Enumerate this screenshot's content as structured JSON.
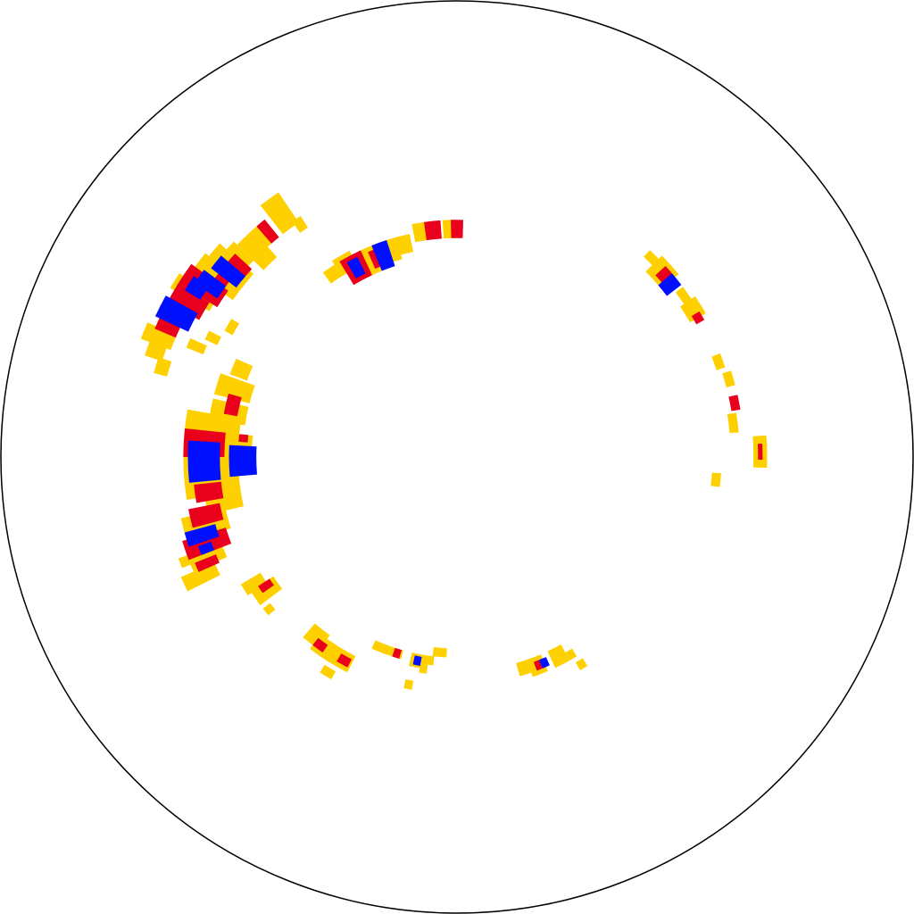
{
  "chart_data": {
    "type": "heatmap",
    "projection": "polar",
    "title": "",
    "colors": {
      "background": "#ffffff",
      "outline": "#000000",
      "low": "#ffd000",
      "mid": "#e8001c",
      "high": "#0010ff"
    },
    "levels": [
      "low",
      "mid",
      "high"
    ],
    "notes_visible_text": "none",
    "cells": [
      {
        "angle": 124,
        "r_in": 0.47,
        "r_out": 0.5,
        "dtheta": 4,
        "level": "low"
      },
      {
        "angle": 120,
        "r_in": 0.47,
        "r_out": 0.51,
        "dtheta": 5,
        "level": "low"
      },
      {
        "angle": 118,
        "r_in": 0.44,
        "r_out": 0.5,
        "dtheta": 6,
        "level": "mid"
      },
      {
        "angle": 118,
        "r_in": 0.45,
        "r_out": 0.49,
        "dtheta": 3,
        "level": "high"
      },
      {
        "angle": 114,
        "r_in": 0.44,
        "r_out": 0.5,
        "dtheta": 5,
        "level": "low"
      },
      {
        "angle": 112,
        "r_in": 0.45,
        "r_out": 0.49,
        "dtheta": 3,
        "level": "mid"
      },
      {
        "angle": 110,
        "r_in": 0.44,
        "r_out": 0.5,
        "dtheta": 4,
        "level": "high"
      },
      {
        "angle": 108,
        "r_in": 0.45,
        "r_out": 0.5,
        "dtheta": 5,
        "level": "low"
      },
      {
        "angle": 104,
        "r_in": 0.46,
        "r_out": 0.5,
        "dtheta": 4,
        "level": "low"
      },
      {
        "angle": 99,
        "r_in": 0.48,
        "r_out": 0.52,
        "dtheta": 4,
        "level": "low"
      },
      {
        "angle": 96,
        "r_in": 0.48,
        "r_out": 0.52,
        "dtheta": 4,
        "level": "mid"
      },
      {
        "angle": 92,
        "r_in": 0.48,
        "r_out": 0.52,
        "dtheta": 3,
        "level": "low"
      },
      {
        "angle": 90,
        "r_in": 0.48,
        "r_out": 0.52,
        "dtheta": 3,
        "level": "mid"
      },
      {
        "angle": 45,
        "r_in": 0.6,
        "r_out": 0.62,
        "dtheta": 4,
        "level": "low"
      },
      {
        "angle": 42,
        "r_in": 0.58,
        "r_out": 0.63,
        "dtheta": 5,
        "level": "low"
      },
      {
        "angle": 41,
        "r_in": 0.59,
        "r_out": 0.62,
        "dtheta": 3,
        "level": "mid"
      },
      {
        "angle": 39,
        "r_in": 0.58,
        "r_out": 0.62,
        "dtheta": 3,
        "level": "high"
      },
      {
        "angle": 35,
        "r_in": 0.6,
        "r_out": 0.62,
        "dtheta": 4,
        "level": "low"
      },
      {
        "angle": 32,
        "r_in": 0.59,
        "r_out": 0.63,
        "dtheta": 4,
        "level": "low"
      },
      {
        "angle": 30,
        "r_in": 0.6,
        "r_out": 0.62,
        "dtheta": 2,
        "level": "mid"
      },
      {
        "angle": 20,
        "r_in": 0.6,
        "r_out": 0.62,
        "dtheta": 3,
        "level": "low"
      },
      {
        "angle": 16,
        "r_in": 0.61,
        "r_out": 0.63,
        "dtheta": 3,
        "level": "low"
      },
      {
        "angle": 11,
        "r_in": 0.61,
        "r_out": 0.63,
        "dtheta": 3,
        "level": "mid"
      },
      {
        "angle": 7,
        "r_in": 0.6,
        "r_out": 0.62,
        "dtheta": 4,
        "level": "low"
      },
      {
        "angle": 1,
        "r_in": 0.65,
        "r_out": 0.68,
        "dtheta": 6,
        "level": "low"
      },
      {
        "angle": 1,
        "r_in": 0.66,
        "r_out": 0.67,
        "dtheta": 3,
        "level": "mid"
      },
      {
        "angle": -5,
        "r_in": 0.56,
        "r_out": 0.58,
        "dtheta": 3,
        "level": "low"
      },
      {
        "angle": 163,
        "r_in": 0.66,
        "r_out": 0.69,
        "dtheta": 3,
        "level": "low"
      },
      {
        "angle": 160,
        "r_in": 0.68,
        "r_out": 0.72,
        "dtheta": 4,
        "level": "low"
      },
      {
        "angle": 158,
        "r_in": 0.67,
        "r_out": 0.74,
        "dtheta": 3,
        "level": "low"
      },
      {
        "angle": 155,
        "r_in": 0.67,
        "r_out": 0.72,
        "dtheta": 4,
        "level": "mid"
      },
      {
        "angle": 153,
        "r_in": 0.65,
        "r_out": 0.73,
        "dtheta": 4,
        "level": "high"
      },
      {
        "angle": 150,
        "r_in": 0.64,
        "r_out": 0.72,
        "dtheta": 4,
        "level": "mid"
      },
      {
        "angle": 148,
        "r_in": 0.63,
        "r_out": 0.73,
        "dtheta": 3,
        "level": "low"
      },
      {
        "angle": 147,
        "r_in": 0.66,
        "r_out": 0.7,
        "dtheta": 3,
        "level": "high"
      },
      {
        "angle": 146,
        "r_in": 0.62,
        "r_out": 0.72,
        "dtheta": 4,
        "level": "mid"
      },
      {
        "angle": 145,
        "r_in": 0.63,
        "r_out": 0.69,
        "dtheta": 3,
        "level": "high"
      },
      {
        "angle": 143,
        "r_in": 0.6,
        "r_out": 0.71,
        "dtheta": 4,
        "level": "low"
      },
      {
        "angle": 143,
        "r_in": 0.63,
        "r_out": 0.66,
        "dtheta": 2,
        "level": "mid"
      },
      {
        "angle": 141,
        "r_in": 0.61,
        "r_out": 0.68,
        "dtheta": 3,
        "level": "high"
      },
      {
        "angle": 140,
        "r_in": 0.6,
        "r_out": 0.7,
        "dtheta": 4,
        "level": "low"
      },
      {
        "angle": 139,
        "r_in": 0.61,
        "r_out": 0.66,
        "dtheta": 3,
        "level": "mid"
      },
      {
        "angle": 137,
        "r_in": 0.62,
        "r_out": 0.68,
        "dtheta": 2,
        "level": "low"
      },
      {
        "angle": 134,
        "r_in": 0.59,
        "r_out": 0.67,
        "dtheta": 4,
        "level": "low"
      },
      {
        "angle": 131,
        "r_in": 0.62,
        "r_out": 0.67,
        "dtheta": 4,
        "level": "low"
      },
      {
        "angle": 130,
        "r_in": 0.62,
        "r_out": 0.67,
        "dtheta": 2,
        "level": "mid"
      },
      {
        "angle": 126,
        "r_in": 0.62,
        "r_out": 0.7,
        "dtheta": 4,
        "level": "low"
      },
      {
        "angle": 124,
        "r_in": 0.6,
        "r_out": 0.63,
        "dtheta": 2,
        "level": "low"
      },
      {
        "angle": 157,
        "r_in": 0.6,
        "r_out": 0.64,
        "dtheta": 2,
        "level": "low"
      },
      {
        "angle": 150,
        "r_in": 0.56,
        "r_out": 0.58,
        "dtheta": 3,
        "level": "low"
      },
      {
        "angle": 154,
        "r_in": 0.58,
        "r_out": 0.61,
        "dtheta": 2,
        "level": "low"
      },
      {
        "angle": 179,
        "r_in": 0.45,
        "r_out": 0.48,
        "dtheta": 3,
        "level": "low"
      },
      {
        "angle": 176,
        "r_in": 0.45,
        "r_out": 0.49,
        "dtheta": 4,
        "level": "low"
      },
      {
        "angle": 175,
        "r_in": 0.46,
        "r_out": 0.48,
        "dtheta": 2,
        "level": "mid"
      },
      {
        "angle": 183,
        "r_in": 0.55,
        "r_out": 0.57,
        "dtheta": 3,
        "level": "low"
      },
      {
        "angle": 178,
        "r_in": 0.48,
        "r_out": 0.53,
        "dtheta": 6,
        "level": "low"
      },
      {
        "angle": 173,
        "r_in": 0.48,
        "r_out": 0.53,
        "dtheta": 5,
        "level": "low"
      },
      {
        "angle": 169,
        "r_in": 0.47,
        "r_out": 0.55,
        "dtheta": 5,
        "level": "low"
      },
      {
        "angle": 167,
        "r_in": 0.49,
        "r_out": 0.52,
        "dtheta": 5,
        "level": "mid"
      },
      {
        "angle": 163,
        "r_in": 0.47,
        "r_out": 0.55,
        "dtheta": 5,
        "level": "low"
      },
      {
        "angle": 158,
        "r_in": 0.49,
        "r_out": 0.53,
        "dtheta": 4,
        "level": "low"
      },
      {
        "angle": 181,
        "r_in": 0.44,
        "r_out": 0.5,
        "dtheta": 8,
        "level": "high"
      },
      {
        "angle": 178,
        "r_in": 0.49,
        "r_out": 0.6,
        "dtheta": 16,
        "level": "low"
      },
      {
        "angle": 177,
        "r_in": 0.51,
        "r_out": 0.6,
        "dtheta": 6,
        "level": "mid"
      },
      {
        "angle": 181,
        "r_in": 0.52,
        "r_out": 0.59,
        "dtheta": 9,
        "level": "high"
      },
      {
        "angle": 186,
        "r_in": 0.48,
        "r_out": 0.6,
        "dtheta": 6,
        "level": "low"
      },
      {
        "angle": 188,
        "r_in": 0.52,
        "r_out": 0.58,
        "dtheta": 4,
        "level": "mid"
      },
      {
        "angle": 191,
        "r_in": 0.48,
        "r_out": 0.56,
        "dtheta": 4,
        "level": "low"
      },
      {
        "angle": 193,
        "r_in": 0.53,
        "r_out": 0.6,
        "dtheta": 4,
        "level": "mid"
      },
      {
        "angle": 195,
        "r_in": 0.52,
        "r_out": 0.62,
        "dtheta": 5,
        "level": "low"
      },
      {
        "angle": 197,
        "r_in": 0.55,
        "r_out": 0.62,
        "dtheta": 3,
        "level": "high"
      },
      {
        "angle": 199,
        "r_in": 0.53,
        "r_out": 0.63,
        "dtheta": 4,
        "level": "mid"
      },
      {
        "angle": 202,
        "r_in": 0.55,
        "r_out": 0.63,
        "dtheta": 3,
        "level": "low"
      },
      {
        "angle": 200,
        "r_in": 0.57,
        "r_out": 0.6,
        "dtheta": 2,
        "level": "high"
      },
      {
        "angle": 203,
        "r_in": 0.57,
        "r_out": 0.62,
        "dtheta": 2,
        "level": "mid"
      },
      {
        "angle": 205,
        "r_in": 0.58,
        "r_out": 0.66,
        "dtheta": 3,
        "level": "low"
      },
      {
        "angle": 201,
        "r_in": 0.61,
        "r_out": 0.65,
        "dtheta": 2,
        "level": "low"
      },
      {
        "angle": 212,
        "r_in": 0.5,
        "r_out": 0.55,
        "dtheta": 3,
        "level": "low"
      },
      {
        "angle": 215,
        "r_in": 0.48,
        "r_out": 0.54,
        "dtheta": 4,
        "level": "low"
      },
      {
        "angle": 214,
        "r_in": 0.49,
        "r_out": 0.52,
        "dtheta": 2,
        "level": "mid"
      },
      {
        "angle": 219,
        "r_in": 0.52,
        "r_out": 0.54,
        "dtheta": 2,
        "level": "low"
      },
      {
        "angle": 232,
        "r_in": 0.48,
        "r_out": 0.52,
        "dtheta": 5,
        "level": "low"
      },
      {
        "angle": 235,
        "r_in": 0.49,
        "r_out": 0.53,
        "dtheta": 5,
        "level": "low"
      },
      {
        "angle": 234,
        "r_in": 0.5,
        "r_out": 0.52,
        "dtheta": 3,
        "level": "mid"
      },
      {
        "angle": 240,
        "r_in": 0.49,
        "r_out": 0.53,
        "dtheta": 6,
        "level": "low"
      },
      {
        "angle": 241,
        "r_in": 0.5,
        "r_out": 0.52,
        "dtheta": 3,
        "level": "mid"
      },
      {
        "angle": 239,
        "r_in": 0.54,
        "r_out": 0.56,
        "dtheta": 3,
        "level": "low"
      },
      {
        "angle": 248,
        "r_in": 0.44,
        "r_out": 0.46,
        "dtheta": 4,
        "level": "low"
      },
      {
        "angle": 252,
        "r_in": 0.44,
        "r_out": 0.46,
        "dtheta": 5,
        "level": "low"
      },
      {
        "angle": 253,
        "r_in": 0.44,
        "r_out": 0.46,
        "dtheta": 2,
        "level": "mid"
      },
      {
        "angle": 259,
        "r_in": 0.44,
        "r_out": 0.47,
        "dtheta": 4,
        "level": "low"
      },
      {
        "angle": 259,
        "r_in": 0.445,
        "r_out": 0.465,
        "dtheta": 2,
        "level": "high"
      },
      {
        "angle": 261,
        "r_in": 0.46,
        "r_out": 0.48,
        "dtheta": 2,
        "level": "low"
      },
      {
        "angle": 262,
        "r_in": 0.44,
        "r_out": 0.46,
        "dtheta": 3,
        "level": "low"
      },
      {
        "angle": 265,
        "r_in": 0.42,
        "r_out": 0.44,
        "dtheta": 4,
        "level": "low"
      },
      {
        "angle": 258,
        "r_in": 0.5,
        "r_out": 0.52,
        "dtheta": 2,
        "level": "low"
      },
      {
        "angle": 288,
        "r_in": 0.47,
        "r_out": 0.5,
        "dtheta": 4,
        "level": "low"
      },
      {
        "angle": 291,
        "r_in": 0.47,
        "r_out": 0.51,
        "dtheta": 4,
        "level": "low"
      },
      {
        "angle": 292,
        "r_in": 0.48,
        "r_out": 0.5,
        "dtheta": 3,
        "level": "mid"
      },
      {
        "angle": 293,
        "r_in": 0.48,
        "r_out": 0.5,
        "dtheta": 2,
        "level": "high"
      },
      {
        "angle": 297,
        "r_in": 0.47,
        "r_out": 0.51,
        "dtheta": 4,
        "level": "low"
      },
      {
        "angle": 300,
        "r_in": 0.49,
        "r_out": 0.51,
        "dtheta": 2,
        "level": "low"
      },
      {
        "angle": 301,
        "r_in": 0.52,
        "r_out": 0.54,
        "dtheta": 2,
        "level": "low"
      }
    ]
  }
}
